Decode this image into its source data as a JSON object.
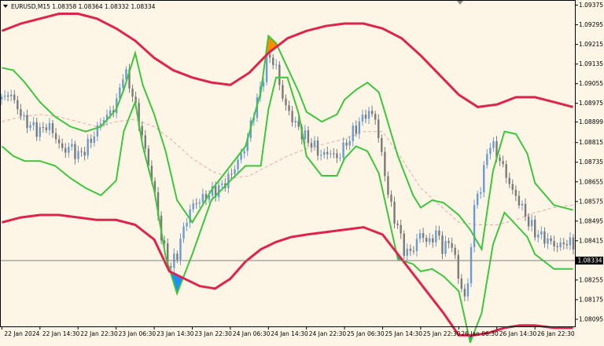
{
  "header": {
    "symbol_text": "EURUSD,M15  1.08358 1.08364 1.08332 1.08334"
  },
  "colors": {
    "background": "#fdf6e6",
    "candle_bull": "#6b9bd1",
    "candle_bear": "#7a7a7a",
    "outer_band": "#e0234b",
    "inner_band": "#3cc63c",
    "mid_line": "#eba7a7",
    "fill_high": "#ff8c00",
    "fill_low": "#1f8fff",
    "price_line": "#808080",
    "price_label_bg": "#000000",
    "price_label_fg": "#ffffff"
  },
  "chart_data": {
    "type": "line",
    "symbol": "EURUSD",
    "timeframe": "M15",
    "ohlc_last": {
      "open": 1.08358,
      "high": 1.08364,
      "low": 1.08332,
      "close": 1.08334
    },
    "current_price": 1.08334,
    "current_price_label": "1.08334",
    "ylim": [
      1.08066,
      1.09396
    ],
    "y_ticks": [
      1.09375,
      1.09295,
      1.09215,
      1.09135,
      1.09055,
      1.08975,
      1.08899,
      1.08815,
      1.08735,
      1.08655,
      1.08575,
      1.08495,
      1.08415,
      1.08255,
      1.08175,
      1.08095
    ],
    "y_tick_labels": [
      "1.09375",
      "1.09295",
      "1.09215",
      "1.09135",
      "1.09055",
      "1.08975",
      "1.08899",
      "1.08815",
      "1.08735",
      "1.08655",
      "1.08575",
      "1.08495",
      "1.08415",
      "1.08255",
      "1.08175",
      "1.08095"
    ],
    "x_tick_labels": [
      "22 Jan 2024",
      "22 Jan 14:30",
      "22 Jan 22:30",
      "23 Jan 06:30",
      "23 Jan 14:30",
      "23 Jan 22:30",
      "24 Jan 06:30",
      "24 Jan 14:30",
      "24 Jan 22:30",
      "25 Jan 06:30",
      "25 Jan 14:30",
      "25 Jan 22:30",
      "26 Jan 06:30",
      "26 Jan 14:30",
      "26 Jan 22:30"
    ],
    "x_ticks_index": [
      0,
      1,
      2,
      3,
      4,
      5,
      6,
      7,
      8,
      9,
      10,
      11,
      12,
      13,
      14
    ],
    "x_range": [
      -0.05,
      15.05
    ],
    "grid": false,
    "series": [
      {
        "role": "outer-upper",
        "x": [
          0,
          0.5,
          1,
          1.5,
          2,
          2.5,
          3,
          3.5,
          4,
          4.5,
          5,
          5.5,
          6,
          6.5,
          7,
          7.5,
          8,
          8.5,
          9,
          9.5,
          10,
          10.5,
          11,
          11.5,
          12,
          12.5,
          13,
          13.5,
          14,
          14.5,
          15
        ],
        "y": [
          1.0927,
          1.093,
          1.0932,
          1.0934,
          1.0934,
          1.0932,
          1.0928,
          1.0923,
          1.0916,
          1.0911,
          1.0908,
          1.0906,
          1.0905,
          1.091,
          1.0918,
          1.0924,
          1.0927,
          1.0929,
          1.093,
          1.093,
          1.0928,
          1.0924,
          1.0917,
          1.0909,
          1.0901,
          1.0896,
          1.0897,
          1.09,
          1.09,
          1.0898,
          1.0896
        ]
      },
      {
        "role": "inner-upper",
        "x": [
          0,
          0.3,
          0.6,
          1,
          1.4,
          1.8,
          2.2,
          2.6,
          3,
          3.2,
          3.5,
          3.7,
          4,
          4.3,
          4.6,
          5,
          5.5,
          6,
          6.4,
          6.8,
          7,
          7.2,
          7.5,
          7.8,
          8,
          8.4,
          8.8,
          9,
          9.3,
          9.6,
          9.9,
          10,
          10.4,
          10.8,
          11,
          11.3,
          11.6,
          12,
          12.3,
          12.6,
          12.9,
          13.2,
          13.5,
          13.8,
          14,
          14.5,
          15
        ],
        "y": [
          1.0912,
          1.0911,
          1.0906,
          1.0898,
          1.0892,
          1.0888,
          1.0886,
          1.0888,
          1.0895,
          1.0903,
          1.0918,
          1.0905,
          1.0893,
          1.0878,
          1.0858,
          1.0849,
          1.0862,
          1.0872,
          1.088,
          1.0902,
          1.0925,
          1.0922,
          1.0912,
          1.0902,
          1.0894,
          1.089,
          1.0893,
          1.0899,
          1.0903,
          1.0906,
          1.0902,
          1.0897,
          1.0876,
          1.086,
          1.0855,
          1.0858,
          1.0857,
          1.0852,
          1.0846,
          1.0838,
          1.087,
          1.0886,
          1.0885,
          1.0877,
          1.0865,
          1.0856,
          1.0854
        ]
      },
      {
        "role": "inner-lower",
        "x": [
          0,
          0.3,
          0.6,
          1,
          1.4,
          1.8,
          2.2,
          2.6,
          3,
          3.2,
          3.5,
          3.7,
          4,
          4.3,
          4.6,
          5,
          5.5,
          6,
          6.4,
          6.8,
          7,
          7.2,
          7.5,
          7.8,
          8,
          8.4,
          8.8,
          9,
          9.3,
          9.6,
          9.9,
          10,
          10.4,
          10.8,
          11,
          11.3,
          11.6,
          12,
          12.3,
          12.6,
          12.9,
          13.2,
          13.5,
          13.8,
          14,
          14.5,
          15
        ],
        "y": [
          1.088,
          1.0876,
          1.0874,
          1.0874,
          1.0872,
          1.0867,
          1.0863,
          1.086,
          1.0866,
          1.0886,
          1.0898,
          1.088,
          1.0862,
          1.0835,
          1.082,
          1.0836,
          1.0858,
          1.0866,
          1.0872,
          1.0872,
          1.0895,
          1.0908,
          1.0908,
          1.0893,
          1.0876,
          1.0868,
          1.0868,
          1.0875,
          1.088,
          1.0878,
          1.0869,
          1.0862,
          1.0834,
          1.0832,
          1.0829,
          1.083,
          1.0827,
          1.0821,
          1.08,
          1.0812,
          1.084,
          1.0853,
          1.0848,
          1.0843,
          1.0836,
          1.083,
          1.083
        ]
      },
      {
        "role": "outer-lower",
        "x": [
          0,
          0.5,
          1,
          1.5,
          2,
          2.5,
          3,
          3.5,
          4,
          4.4,
          4.8,
          5.2,
          5.6,
          6,
          6.4,
          6.8,
          7.2,
          7.6,
          8,
          8.5,
          9,
          9.5,
          10,
          10.4,
          10.8,
          11.2,
          11.6,
          12,
          12.4,
          12.8,
          13.2,
          13.6,
          14,
          14.5,
          15
        ],
        "y": [
          1.0849,
          1.0851,
          1.0852,
          1.0852,
          1.0851,
          1.085,
          1.085,
          1.0848,
          1.0842,
          1.0829,
          1.0826,
          1.0823,
          1.0822,
          1.0826,
          1.0833,
          1.0838,
          1.0841,
          1.0843,
          1.0844,
          1.0845,
          1.0846,
          1.0847,
          1.0844,
          1.0836,
          1.0828,
          1.082,
          1.0812,
          1.0803,
          1.0803,
          1.0804,
          1.0806,
          1.0807,
          1.0807,
          1.0806,
          1.0806
        ]
      },
      {
        "role": "mid",
        "x": [
          0,
          0.5,
          1,
          1.5,
          2,
          2.5,
          3,
          3.5,
          4,
          4.5,
          5,
          5.5,
          6,
          6.5,
          7,
          7.5,
          8,
          8.5,
          9,
          9.5,
          10,
          10.5,
          11,
          11.5,
          12,
          12.5,
          13,
          13.5,
          14,
          14.5,
          15
        ],
        "y": [
          1.089,
          1.0892,
          1.0893,
          1.0892,
          1.089,
          1.0888,
          1.089,
          1.0891,
          1.0888,
          1.0882,
          1.0875,
          1.087,
          1.0867,
          1.0868,
          1.0872,
          1.0876,
          1.0879,
          1.0881,
          1.0883,
          1.0886,
          1.0886,
          1.0875,
          1.0863,
          1.0856,
          1.0849,
          1.0848,
          1.0848,
          1.085,
          1.0853,
          1.0855,
          1.0856
        ]
      },
      {
        "role": "price",
        "x": [
          0,
          0.2,
          0.4,
          0.6,
          0.8,
          1,
          1.2,
          1.4,
          1.6,
          1.8,
          2,
          2.2,
          2.4,
          2.6,
          2.8,
          3,
          3.2,
          3.4,
          3.6,
          3.8,
          4,
          4.2,
          4.4,
          4.6,
          4.8,
          5,
          5.2,
          5.4,
          5.6,
          5.8,
          6,
          6.2,
          6.4,
          6.6,
          6.8,
          7,
          7.2,
          7.4,
          7.6,
          7.8,
          8,
          8.2,
          8.4,
          8.6,
          8.8,
          9,
          9.2,
          9.4,
          9.6,
          9.8,
          10,
          10.2,
          10.4,
          10.6,
          10.8,
          11,
          11.2,
          11.4,
          11.6,
          11.8,
          12,
          12.2,
          12.4,
          12.6,
          12.8,
          13,
          13.2,
          13.4,
          13.6,
          13.8,
          14,
          14.2,
          14.4,
          14.6,
          14.8,
          15
        ],
        "y": [
          1.0899,
          1.0902,
          1.0896,
          1.089,
          1.0888,
          1.0886,
          1.0889,
          1.0884,
          1.0878,
          1.088,
          1.0876,
          1.0879,
          1.0884,
          1.089,
          1.0893,
          1.0897,
          1.0911,
          1.0903,
          1.089,
          1.0876,
          1.0862,
          1.0842,
          1.083,
          1.0836,
          1.0848,
          1.0856,
          1.0858,
          1.086,
          1.0862,
          1.0864,
          1.0868,
          1.0874,
          1.088,
          1.0893,
          1.0904,
          1.0918,
          1.0912,
          1.0898,
          1.0892,
          1.0887,
          1.0883,
          1.088,
          1.0876,
          1.0878,
          1.0875,
          1.088,
          1.0885,
          1.089,
          1.0894,
          1.0892,
          1.0874,
          1.0856,
          1.0847,
          1.0836,
          1.0838,
          1.0845,
          1.084,
          1.0845,
          1.0838,
          1.0842,
          1.0826,
          1.0816,
          1.0855,
          1.0865,
          1.0882,
          1.0877,
          1.087,
          1.0862,
          1.0857,
          1.085,
          1.0845,
          1.0843,
          1.0841,
          1.0839,
          1.0841,
          1.084
        ]
      }
    ]
  }
}
